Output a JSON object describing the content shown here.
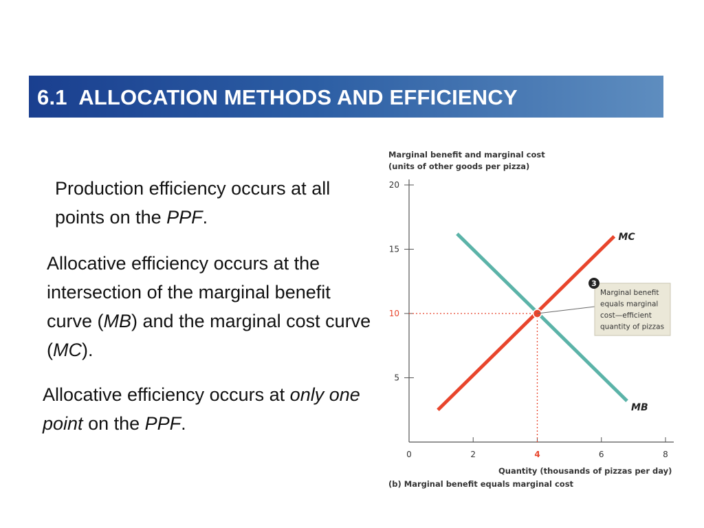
{
  "title": {
    "number": "6.1",
    "text": "ALLOCATION METHODS AND EFFICIENCY"
  },
  "paragraphs": {
    "p1": {
      "t1": "Production efficiency occurs at all points on the ",
      "em1": "PPF",
      "t2": "."
    },
    "p2": {
      "t1": "Allocative efficiency occurs at the intersection of the marginal benefit curve (",
      "em1": "MB",
      "t2": ") and the marginal cost curve (",
      "em2": "MC",
      "t3": ")."
    },
    "p3": {
      "t1": "Allocative efficiency occurs at ",
      "em1": "only one point",
      "t2": " on the ",
      "em2": "PPF",
      "t3": "."
    }
  },
  "chart_data": {
    "type": "line",
    "ylabel_line1": "Marginal benefit and marginal cost",
    "ylabel_line2": "(units of other goods per pizza)",
    "xlabel": "Quantity (thousands of pizzas per day)",
    "caption": "(b) Marginal benefit equals marginal cost",
    "xlim": [
      0,
      8
    ],
    "ylim": [
      0,
      20
    ],
    "x_ticks": [
      "0",
      "2",
      "4",
      "6",
      "8"
    ],
    "y_ticks": [
      "20",
      "15",
      "10",
      "5"
    ],
    "highlight_x_tick": "4",
    "highlight_y_tick": "10",
    "grid": false,
    "series": [
      {
        "name": "MB",
        "color": "#5bb3a8",
        "points": [
          [
            1.5,
            16.2
          ],
          [
            6.8,
            3.2
          ]
        ]
      },
      {
        "name": "MC",
        "color": "#e8452c",
        "points": [
          [
            0.9,
            2.5
          ],
          [
            6.4,
            16.0
          ]
        ]
      }
    ],
    "equilibrium": {
      "x": 4,
      "y": 10,
      "color": "#e8452c"
    },
    "annotation": {
      "badge": "3",
      "lines": [
        "Marginal benefit",
        "equals marginal",
        "cost—efficient",
        "quantity of pizzas"
      ]
    }
  }
}
